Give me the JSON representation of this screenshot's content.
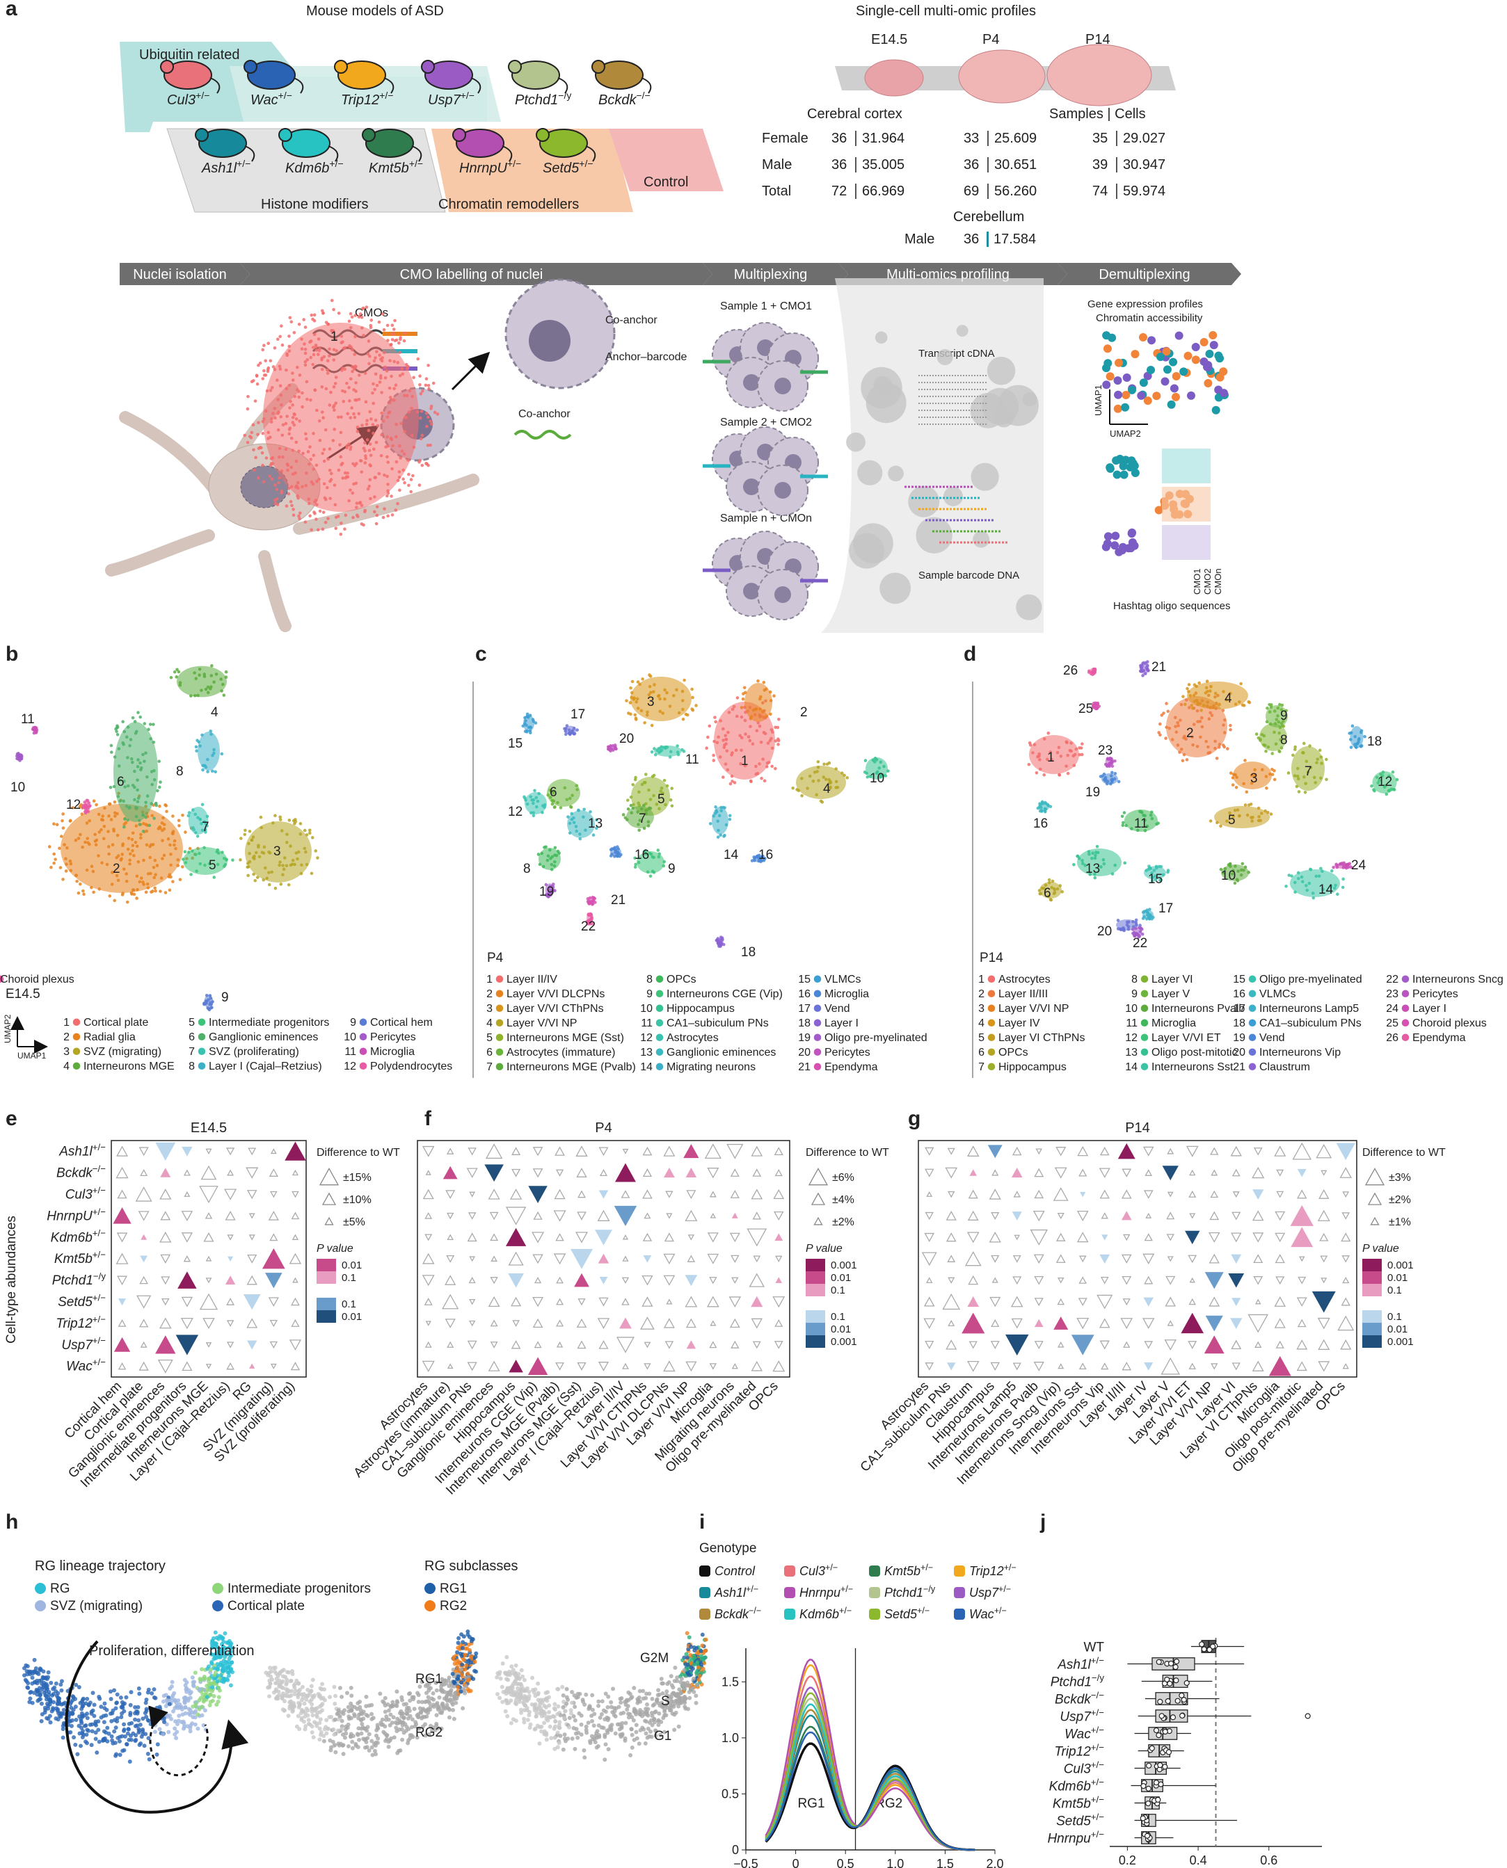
{
  "panel_letters": [
    "a",
    "b",
    "c",
    "d",
    "e",
    "f",
    "g",
    "h",
    "i",
    "j"
  ],
  "panel_a": {
    "models_title": "Mouse models of ASD",
    "profiles_title": "Single-cell multi-omic profiles",
    "group_ubiquitin": "Ubiquitin related",
    "group_histone": "Histone modifiers",
    "group_chromatin": "Chromatin remodellers",
    "group_control": "Control",
    "mice": [
      {
        "label": "Cul3",
        "sup": "+/−",
        "color": "#e8717a"
      },
      {
        "label": "Wac",
        "sup": "+/−",
        "color": "#2a63b3"
      },
      {
        "label": "Trip12",
        "sup": "+/−",
        "color": "#f2a81d"
      },
      {
        "label": "Usp7",
        "sup": "+/−",
        "color": "#9a5cc4"
      },
      {
        "label": "Ptchd1",
        "sup": "−/y",
        "color": "#b3c48e"
      },
      {
        "label": "Bckdk",
        "sup": "−/−",
        "color": "#b08a3a"
      },
      {
        "label": "Ash1l",
        "sup": "+/−",
        "color": "#16899a"
      },
      {
        "label": "Kdm6b",
        "sup": "+/−",
        "color": "#27c2c2"
      },
      {
        "label": "Kmt5b",
        "sup": "+/−",
        "color": "#2f7d4e"
      },
      {
        "label": "HnrnpU",
        "sup": "+/−",
        "color": "#b44fb2"
      },
      {
        "label": "Setd5",
        "sup": "+/−",
        "color": "#8cb82e"
      }
    ],
    "stages": [
      "E14.5",
      "P4",
      "P14"
    ],
    "cortex_title": "Cerebral cortex",
    "samples_cells": "Samples | Cells",
    "table_rows": [
      {
        "label": "Female",
        "e14": [
          "36",
          "31.964"
        ],
        "p4": [
          "33",
          "25.609"
        ],
        "p14": [
          "35",
          "29.027"
        ]
      },
      {
        "label": "Male",
        "e14": [
          "36",
          "35.005"
        ],
        "p4": [
          "36",
          "30.651"
        ],
        "p14": [
          "39",
          "30.947"
        ]
      },
      {
        "label": "Total",
        "e14": [
          "72",
          "66.969"
        ],
        "p4": [
          "69",
          "56.260"
        ],
        "p14": [
          "74",
          "59.974"
        ]
      }
    ],
    "cerebellum_title": "Cerebellum",
    "cerebellum_row": {
      "label": "Male",
      "samples": "36",
      "cells": "17.584"
    },
    "workflow_steps": [
      "Nuclei isolation",
      "CMO labelling of nuclei",
      "Multiplexing",
      "Multi-omics profiling",
      "Demultiplexing"
    ],
    "cmos": "CMOs",
    "co_anchor": "Co-anchor",
    "anchor_barcode": "Anchor–barcode",
    "co_anchor_2": "Co-anchor",
    "sample1": "Sample 1 + CMO1",
    "sample2": "Sample 2 + CMO2",
    "samplen": "Sample n + CMOn",
    "transcript": "Transcript cDNA",
    "barcode_dna": "Sample barcode DNA",
    "gene_expr": "Gene expression profiles",
    "chromatin_acc": "Chromatin accessibility",
    "umap1": "UMAP1",
    "umap2": "UMAP2",
    "cmo_labels": [
      "CMO1",
      "CMO2",
      "CMOn"
    ],
    "hashtag": "Hashtag oligo sequences"
  },
  "panel_b": {
    "stage": "E14.5",
    "umap1": "UMAP1",
    "umap2": "UMAP2",
    "legend": [
      {
        "n": "1",
        "label": "Cortical plate",
        "color": "#f26d6d"
      },
      {
        "n": "2",
        "label": "Radial glia",
        "color": "#e8821e"
      },
      {
        "n": "3",
        "label": "SVZ (migrating)",
        "color": "#b5a524"
      },
      {
        "n": "4",
        "label": "Interneurons MGE",
        "color": "#5cab3d"
      },
      {
        "n": "5",
        "label": "Intermediate progenitors",
        "color": "#3ec47a"
      },
      {
        "n": "6",
        "label": "Ganglionic eminences",
        "color": "#4fb06a"
      },
      {
        "n": "7",
        "label": "SVZ (proliferating)",
        "color": "#39c2b0"
      },
      {
        "n": "8",
        "label": "Layer I (Cajal–Retzius)",
        "color": "#3cb0c8"
      },
      {
        "n": "9",
        "label": "Cortical hem",
        "color": "#5b7bd4"
      },
      {
        "n": "10",
        "label": "Pericytes",
        "color": "#a25bc9"
      },
      {
        "n": "11",
        "label": "Microglia",
        "color": "#c94fb5"
      },
      {
        "n": "12",
        "label": "Polydendrocytes",
        "color": "#e85aa3"
      }
    ]
  },
  "panel_c": {
    "stage": "P4",
    "legend": [
      {
        "n": "1",
        "label": "Layer II/IV",
        "color": "#f26d6d"
      },
      {
        "n": "2",
        "label": "Layer V/VI DLCPNs",
        "color": "#e8821e"
      },
      {
        "n": "3",
        "label": "Layer V/VI CThPNs",
        "color": "#d9941a"
      },
      {
        "n": "4",
        "label": "Layer V/VI NP",
        "color": "#b5a524"
      },
      {
        "n": "5",
        "label": "Interneurons MGE (Sst)",
        "color": "#8fb32b"
      },
      {
        "n": "6",
        "label": "Astrocytes (immature)",
        "color": "#6ab53a"
      },
      {
        "n": "7",
        "label": "Interneurons MGE (Pvalb)",
        "color": "#5cab3d"
      },
      {
        "n": "8",
        "label": "OPCs",
        "color": "#3eb85a"
      },
      {
        "n": "9",
        "label": "Interneurons CGE (Vip)",
        "color": "#3ec47a"
      },
      {
        "n": "10",
        "label": "Hippocampus",
        "color": "#36c290"
      },
      {
        "n": "11",
        "label": "CA1–subiculum PNs",
        "color": "#3bc4a6"
      },
      {
        "n": "12",
        "label": "Astrocytes",
        "color": "#39c2b0"
      },
      {
        "n": "13",
        "label": "Ganglionic eminences",
        "color": "#3cb8c0"
      },
      {
        "n": "14",
        "label": "Migrating neurons",
        "color": "#3cb0c8"
      },
      {
        "n": "15",
        "label": "VLMCs",
        "color": "#3c9ed2"
      },
      {
        "n": "16",
        "label": "Microglia",
        "color": "#4a86d6"
      },
      {
        "n": "17",
        "label": "Vend",
        "color": "#6a73d6"
      },
      {
        "n": "18",
        "label": "Layer I",
        "color": "#8a62d2"
      },
      {
        "n": "19",
        "label": "Oligo pre-myelinated",
        "color": "#a25bc9"
      },
      {
        "n": "20",
        "label": "Pericytes",
        "color": "#c155bf"
      },
      {
        "n": "21",
        "label": "Ependyma",
        "color": "#d752b0"
      },
      {
        "n": "22",
        "label": "Choroid plexus",
        "color": "#e85aa3"
      }
    ]
  },
  "panel_d": {
    "stage": "P14",
    "legend": [
      {
        "n": "1",
        "label": "Astrocytes",
        "color": "#f26d6d"
      },
      {
        "n": "2",
        "label": "Layer II/III",
        "color": "#ec7a3e"
      },
      {
        "n": "3",
        "label": "Layer V/VI NP",
        "color": "#e8821e"
      },
      {
        "n": "4",
        "label": "Layer IV",
        "color": "#d9941a"
      },
      {
        "n": "5",
        "label": "Layer VI CThPNs",
        "color": "#c49c1e"
      },
      {
        "n": "6",
        "label": "OPCs",
        "color": "#b5a524"
      },
      {
        "n": "7",
        "label": "Hippocampus",
        "color": "#9cae2a"
      },
      {
        "n": "8",
        "label": "Layer VI",
        "color": "#7fb332"
      },
      {
        "n": "9",
        "label": "Layer V",
        "color": "#6ab53a"
      },
      {
        "n": "10",
        "label": "Interneurons Pvalb",
        "color": "#5cab3d"
      },
      {
        "n": "11",
        "label": "Microglia",
        "color": "#3eb85a"
      },
      {
        "n": "12",
        "label": "Layer V/VI ET",
        "color": "#3ec47a"
      },
      {
        "n": "13",
        "label": "Oligo post-mitotic",
        "color": "#36c290"
      },
      {
        "n": "14",
        "label": "Interneurons Sst",
        "color": "#3bc4a6"
      },
      {
        "n": "15",
        "label": "Oligo pre-myelinated",
        "color": "#39c2b0"
      },
      {
        "n": "16",
        "label": "VLMCs",
        "color": "#3cb8c0"
      },
      {
        "n": "17",
        "label": "Interneurons Lamp5",
        "color": "#3cb0c8"
      },
      {
        "n": "18",
        "label": "CA1–subiculum PNs",
        "color": "#3c9ed2"
      },
      {
        "n": "19",
        "label": "Vend",
        "color": "#4a86d6"
      },
      {
        "n": "20",
        "label": "Interneurons Vip",
        "color": "#6a73d6"
      },
      {
        "n": "21",
        "label": "Claustrum",
        "color": "#8a62d2"
      },
      {
        "n": "22",
        "label": "Interneurons Sncg (Vip)",
        "color": "#a25bc9"
      },
      {
        "n": "23",
        "label": "Pericytes",
        "color": "#b855c2"
      },
      {
        "n": "24",
        "label": "Layer I",
        "color": "#c94fb5"
      },
      {
        "n": "25",
        "label": "Choroid plexus",
        "color": "#d752b0"
      },
      {
        "n": "26",
        "label": "Ependyma",
        "color": "#e85aa3"
      }
    ]
  },
  "panels_efg": {
    "y_title": "Cell-type abundances",
    "genotypes": [
      {
        "name": "Ash1l",
        "sup": "+/−"
      },
      {
        "name": "Bckdk",
        "sup": "−/−"
      },
      {
        "name": "Cul3",
        "sup": "+/−"
      },
      {
        "name": "HnrnpU",
        "sup": "+/−"
      },
      {
        "name": "Kdm6b",
        "sup": "+/−"
      },
      {
        "name": "Kmt5b",
        "sup": "+/−"
      },
      {
        "name": "Ptchd1",
        "sup": "−/y"
      },
      {
        "name": "Setd5",
        "sup": "+/−"
      },
      {
        "name": "Trip12",
        "sup": "+/−"
      },
      {
        "name": "Usp7",
        "sup": "+/−"
      },
      {
        "name": "Wac",
        "sup": "+/−"
      }
    ],
    "diff_title": "Difference to WT",
    "p_title": "P value",
    "e": {
      "title": "E14.5",
      "columns": [
        "Cortical hem",
        "Cortical plate",
        "Ganglionic eminences",
        "Intermediate progenitors",
        "Interneurons MGE",
        "Layer I (Cajal–Retzius)",
        "RG",
        "SVZ (migrating)",
        "SVZ (proliferating)"
      ],
      "sizes": [
        "±15%",
        "±10%",
        "±5%"
      ],
      "pvals_up": [
        "0.01",
        "0.1"
      ],
      "pvals_down": [
        "0.1",
        "0.01"
      ]
    },
    "f": {
      "title": "P4",
      "columns": [
        "Astrocytes",
        "Astrocytes (immature)",
        "CA1–subiculum PNs",
        "Ganglionic eminences",
        "Hippocampus",
        "Interneurons CGE (Vip)",
        "Interneurons MGE (Pvalb)",
        "Interneurons MGE (Sst)",
        "Layer I (Cajal–Retzius)",
        "Layer II/IV",
        "Layer V/VI CThPNs",
        "Layer V/VI DLCPNs",
        "Layer V/VI NP",
        "Microglia",
        "Migrating neurons",
        "Oligo pre-myelinated",
        "OPCs"
      ],
      "sizes": [
        "±6%",
        "±4%",
        "±2%"
      ],
      "pvals_up": [
        "0.001",
        "0.01",
        "0.1"
      ],
      "pvals_down": [
        "0.1",
        "0.01",
        "0.001"
      ]
    },
    "g": {
      "title": "P14",
      "columns": [
        "Astrocytes",
        "CA1–subiculum PNs",
        "Claustrum",
        "Hippocampus",
        "Interneurons Lamp5",
        "Interneurons Pvalb",
        "Interneurons Sncg (Vip)",
        "Interneurons Sst",
        "Interneurons Vip",
        "Layer II/III",
        "Layer IV",
        "Layer V",
        "Layer V/VI ET",
        "Layer V/VI NP",
        "Layer VI",
        "Layer VI CThPNs",
        "Microglia",
        "Oligo post-mitotic",
        "Oligo pre-myelinated",
        "OPCs"
      ],
      "sizes": [
        "±3%",
        "±2%",
        "±1%"
      ],
      "pvals_up": [
        "0.001",
        "0.01",
        "0.1"
      ],
      "pvals_down": [
        "0.1",
        "0.01",
        "0.001"
      ]
    },
    "colors": {
      "up": [
        "#8e1c5c",
        "#c74a8a",
        "#e89cc0"
      ],
      "down": [
        "#b9d6ec",
        "#6a9ccb",
        "#1f4f7a"
      ]
    }
  },
  "panel_h": {
    "lineage_title": "RG lineage trajectory",
    "lineage_items": [
      {
        "label": "RG",
        "color": "#2bbfd6"
      },
      {
        "label": "Intermediate progenitors",
        "color": "#8fd67a"
      },
      {
        "label": "SVZ (migrating)",
        "color": "#9fb6e0"
      },
      {
        "label": "Cortical plate",
        "color": "#2a66b5"
      }
    ],
    "subclass_title": "RG subclasses",
    "subclass_items": [
      {
        "label": "RG1",
        "color": "#1f5fa8"
      },
      {
        "label": "RG2",
        "color": "#f07d1a"
      }
    ],
    "arrow_text": "Proliferation, differentiation",
    "map_labels": [
      "RG1",
      "RG2",
      "G2M",
      "S",
      "G1"
    ]
  },
  "panel_i": {
    "legend_title": "Genotype",
    "legend": [
      {
        "name": "Control",
        "sup": "",
        "color": "#111111"
      },
      {
        "name": "Cul3",
        "sup": "+/−",
        "color": "#e8717a"
      },
      {
        "name": "Kmt5b",
        "sup": "+/−",
        "color": "#2f7d4e"
      },
      {
        "name": "Trip12",
        "sup": "+/−",
        "color": "#f2a81d"
      },
      {
        "name": "Ash1l",
        "sup": "+/−",
        "color": "#16899a"
      },
      {
        "name": "Hnrnpu",
        "sup": "+/−",
        "color": "#b44fb2"
      },
      {
        "name": "Ptchd1",
        "sup": "−/y",
        "color": "#b3c48e"
      },
      {
        "name": "Usp7",
        "sup": "+/−",
        "color": "#9a5cc4"
      },
      {
        "name": "Bckdk",
        "sup": "−/−",
        "color": "#b08a3a"
      },
      {
        "name": "Kdm6b",
        "sup": "+/−",
        "color": "#27c2c2"
      },
      {
        "name": "Setd5",
        "sup": "+/−",
        "color": "#8cb82e"
      },
      {
        "name": "Wac",
        "sup": "+/−",
        "color": "#2a63b3"
      }
    ],
    "xlabel": "Pseudotime",
    "region_labels": [
      "RG1",
      "RG2"
    ],
    "x_ticks": [
      "−0.5",
      "0",
      "0.5",
      "1.0",
      "1.5",
      "2.0"
    ],
    "y_ticks": [
      "0",
      "0.5",
      "1.0",
      "1.5"
    ]
  },
  "panel_j": {
    "xlabel": "Pseudotime",
    "x_ticks": [
      "0.2",
      "0.4",
      "0.6"
    ]
  },
  "chart_data": [
    {
      "type": "line",
      "panel": "i",
      "xlabel": "Pseudotime",
      "ylabel": "",
      "xlim": [
        -0.5,
        2.0
      ],
      "ylim": [
        0,
        1.8
      ],
      "divider_x": 0.6,
      "series": [
        {
          "name": "Control",
          "peak1": 0.95,
          "peak2": 0.75
        },
        {
          "name": "Cul3",
          "peak1": 1.55,
          "peak2": 0.6
        },
        {
          "name": "Kmt5b",
          "peak1": 1.1,
          "peak2": 0.72
        },
        {
          "name": "Trip12",
          "peak1": 1.65,
          "peak2": 0.58
        },
        {
          "name": "Ash1l",
          "peak1": 1.2,
          "peak2": 0.7
        },
        {
          "name": "Hnrnpu",
          "peak1": 1.7,
          "peak2": 0.55
        },
        {
          "name": "Ptchd1",
          "peak1": 1.35,
          "peak2": 0.65
        },
        {
          "name": "Usp7",
          "peak1": 1.45,
          "peak2": 0.62
        },
        {
          "name": "Bckdk",
          "peak1": 1.25,
          "peak2": 0.68
        },
        {
          "name": "Kdm6b",
          "peak1": 1.3,
          "peak2": 0.66
        },
        {
          "name": "Setd5",
          "peak1": 1.4,
          "peak2": 0.63
        },
        {
          "name": "Wac",
          "peak1": 1.05,
          "peak2": 0.73
        }
      ]
    },
    {
      "type": "box",
      "panel": "j",
      "xlabel": "Pseudotime",
      "xlim": [
        0.15,
        0.75
      ],
      "reference_line": 0.45,
      "categories": [
        "WT",
        "Ash1l",
        "Ptchd1",
        "Bckdk",
        "Usp7",
        "Wac",
        "Trip12",
        "Cul3",
        "Kdm6b",
        "Kmt5b",
        "Setd5",
        "Hnrnpu"
      ],
      "sups": [
        "",
        "+/−",
        "−/y",
        "−/−",
        "+/−",
        "+/−",
        "+/−",
        "+/−",
        "+/−",
        "+/−",
        "+/−",
        "+/−"
      ],
      "boxes": [
        [
          0.38,
          0.41,
          0.43,
          0.45,
          0.53
        ],
        [
          0.2,
          0.27,
          0.33,
          0.39,
          0.53
        ],
        [
          0.24,
          0.3,
          0.33,
          0.37,
          0.44
        ],
        [
          0.25,
          0.28,
          0.32,
          0.37,
          0.46
        ],
        [
          0.23,
          0.28,
          0.32,
          0.37,
          0.71
        ],
        [
          0.22,
          0.26,
          0.3,
          0.34,
          0.38
        ],
        [
          0.23,
          0.26,
          0.29,
          0.32,
          0.36
        ],
        [
          0.22,
          0.25,
          0.28,
          0.31,
          0.35
        ],
        [
          0.21,
          0.24,
          0.27,
          0.3,
          0.45
        ],
        [
          0.22,
          0.25,
          0.27,
          0.29,
          0.31
        ],
        [
          0.22,
          0.24,
          0.26,
          0.28,
          0.51
        ],
        [
          0.22,
          0.24,
          0.26,
          0.28,
          0.33
        ]
      ]
    }
  ]
}
